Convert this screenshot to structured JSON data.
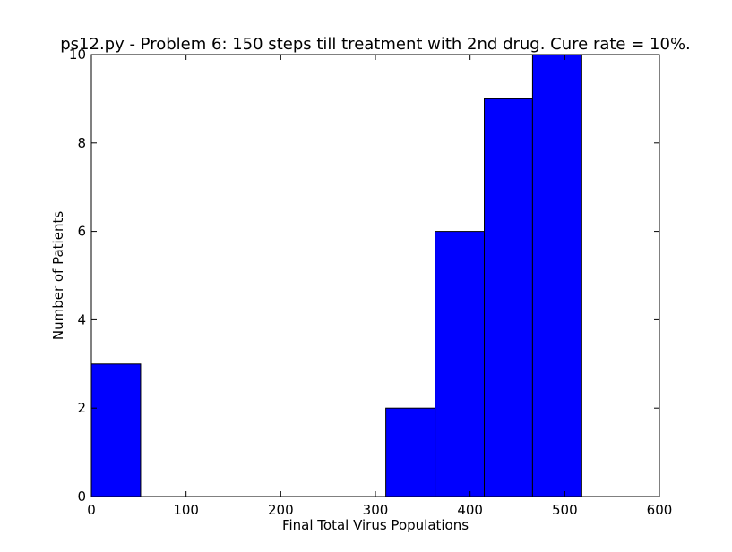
{
  "chart_data": {
    "type": "bar",
    "title": "ps12.py - Problem 6: 150 steps till treatment with 2nd drug. Cure rate = 10%.",
    "xlabel": "Final Total Virus Populations",
    "ylabel": "Number of Patients",
    "xlim": [
      0,
      600
    ],
    "ylim": [
      0,
      10
    ],
    "xticks": [
      "0",
      "100",
      "200",
      "300",
      "400",
      "500",
      "600"
    ],
    "yticks": [
      "0",
      "2",
      "4",
      "6",
      "8",
      "10"
    ],
    "bins": [
      {
        "x0": 0,
        "x1": 52,
        "count": 3
      },
      {
        "x0": 52,
        "x1": 104,
        "count": 0
      },
      {
        "x0": 104,
        "x1": 156,
        "count": 0
      },
      {
        "x0": 156,
        "x1": 207,
        "count": 0
      },
      {
        "x0": 207,
        "x1": 259,
        "count": 0
      },
      {
        "x0": 259,
        "x1": 311,
        "count": 0
      },
      {
        "x0": 311,
        "x1": 363,
        "count": 2
      },
      {
        "x0": 363,
        "x1": 415,
        "count": 6
      },
      {
        "x0": 415,
        "x1": 466,
        "count": 9
      },
      {
        "x0": 466,
        "x1": 518,
        "count": 10
      }
    ],
    "bar_color": "#0000ff",
    "edge_color": "#000000",
    "grid": false,
    "legend": "none"
  }
}
